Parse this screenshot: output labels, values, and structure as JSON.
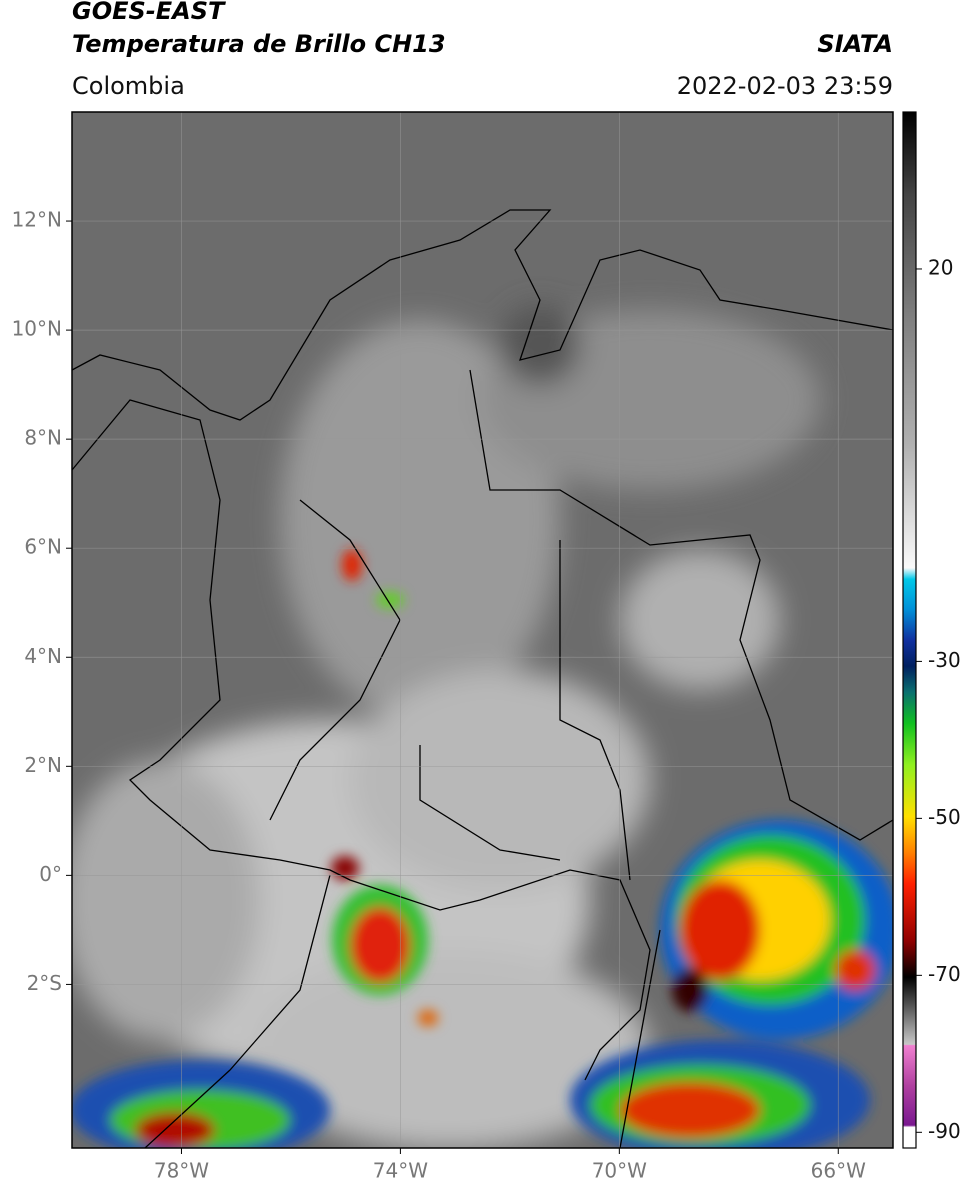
{
  "header": {
    "satellite": "GOES-EAST",
    "product": "Temperatura de Brillo CH13",
    "source": "SIATA",
    "region": "Colombia",
    "datetime": "2022-02-03 23:59"
  },
  "map": {
    "lonlim": [
      -80,
      -65
    ],
    "latlim": [
      -5,
      14
    ],
    "lonticks": [
      {
        "value": -78,
        "label": "78°W"
      },
      {
        "value": -74,
        "label": "74°W"
      },
      {
        "value": -70,
        "label": "70°W"
      },
      {
        "value": -66,
        "label": "66°W"
      }
    ],
    "latticks": [
      {
        "value": 12,
        "label": "12°N"
      },
      {
        "value": 10,
        "label": "10°N"
      },
      {
        "value": 8,
        "label": "8°N"
      },
      {
        "value": 6,
        "label": "6°N"
      },
      {
        "value": 4,
        "label": "4°N"
      },
      {
        "value": 2,
        "label": "2°N"
      },
      {
        "value": 0,
        "label": "0°"
      },
      {
        "value": -2,
        "label": "2°S"
      }
    ],
    "grid": true
  },
  "colorbar": {
    "lim": [
      -92,
      40
    ],
    "ticks": [
      20,
      -30,
      -50,
      -70,
      -90
    ]
  }
}
